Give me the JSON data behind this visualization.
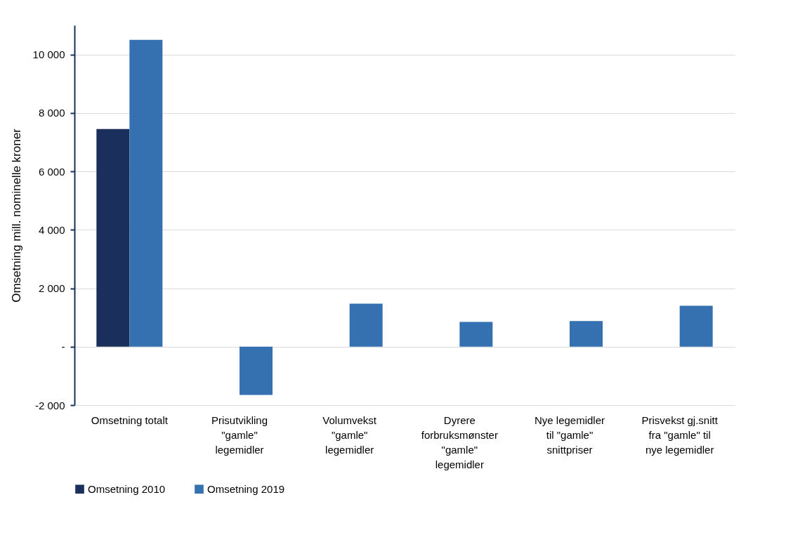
{
  "chart_data": {
    "type": "bar",
    "ylabel": "Omsetning mill. nominelle kroner",
    "categories": [
      "Omsetning totalt",
      "Prisutvikling\n\"gamle\"\nlegemidler",
      "Volumvekst\n\"gamle\"\nlegemidler",
      "Dyrere\nforbruksmønster\n\"gamle\"\nlegemidler",
      "Nye legemidler\ntil \"gamle\"\nsnittpriser",
      "Prisvekst gj.snitt\nfra \"gamle\" til\nnye legemidler"
    ],
    "series": [
      {
        "name": "Omsetning 2010",
        "color": "#1a2f5c",
        "values": [
          7450,
          null,
          null,
          null,
          null,
          null
        ]
      },
      {
        "name": "Omsetning 2019",
        "color": "#3571b0",
        "values": [
          10500,
          -1650,
          1475,
          850,
          875,
          1400
        ]
      }
    ],
    "ylim": [
      -2000,
      11000
    ],
    "yticks": [
      {
        "value": -2000,
        "label": "-2 000"
      },
      {
        "value": 0,
        "label": "-"
      },
      {
        "value": 2000,
        "label": "2 000"
      },
      {
        "value": 4000,
        "label": "4 000"
      },
      {
        "value": 6000,
        "label": "6 000"
      },
      {
        "value": 8000,
        "label": "8 000"
      },
      {
        "value": 10000,
        "label": "10 000"
      }
    ],
    "grid": "y",
    "legend": "bottom"
  }
}
